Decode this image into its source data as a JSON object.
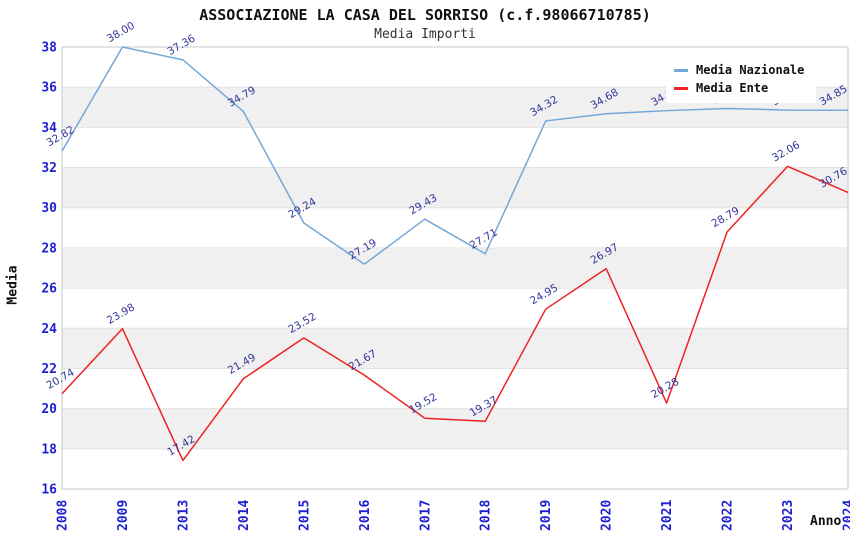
{
  "title": "ASSOCIAZIONE LA CASA DEL SORRISO (c.f.98066710785)",
  "subtitle": "Media Importi",
  "axes": {
    "y_label": "Media",
    "x_label": "Anno",
    "yticks": [
      16,
      18,
      20,
      22,
      24,
      26,
      28,
      30,
      32,
      34,
      36,
      38
    ]
  },
  "legend": {
    "position": "top-right",
    "items": [
      {
        "label": "Media Nazionale",
        "color": "#74a7d8"
      },
      {
        "label": "Media Ente",
        "color": "#ee2222"
      }
    ]
  },
  "colors": {
    "band": "#f0f0f0",
    "gridline": "#e3e3e3",
    "border": "#c9c9c9",
    "tick": "#1f1fd3",
    "value_label": "#333399",
    "blue_line": "#74a7d8",
    "red_line": "#ee2222"
  },
  "chart_data": {
    "type": "line",
    "title": "ASSOCIAZIONE LA CASA DEL SORRISO (c.f.98066710785)",
    "subtitle": "Media Importi",
    "xlabel": "Anno",
    "ylabel": "Media",
    "ylim": [
      16,
      38
    ],
    "ytick_step": 2,
    "grid": "horizontal-bands-alternating",
    "legend_position": "top-right-overlapping-plot",
    "categories": [
      "2008",
      "2009",
      "2013",
      "2014",
      "2015",
      "2016",
      "2017",
      "2018",
      "2019",
      "2020",
      "2021",
      "2022",
      "2023",
      "2024"
    ],
    "series": [
      {
        "name": "Media Nazionale",
        "color": "#74a7d8",
        "values": [
          32.82,
          38.0,
          37.36,
          34.79,
          29.24,
          27.19,
          29.43,
          27.71,
          34.32,
          34.68,
          34.83,
          34.94,
          34.86,
          34.85
        ],
        "labels_covered_by_legend": [
          11,
          12
        ]
      },
      {
        "name": "Media Ente",
        "color": "#ee2222",
        "values": [
          20.74,
          23.98,
          17.42,
          21.49,
          23.52,
          21.67,
          19.52,
          19.37,
          24.95,
          26.97,
          20.28,
          28.79,
          32.06,
          30.76
        ]
      }
    ]
  }
}
